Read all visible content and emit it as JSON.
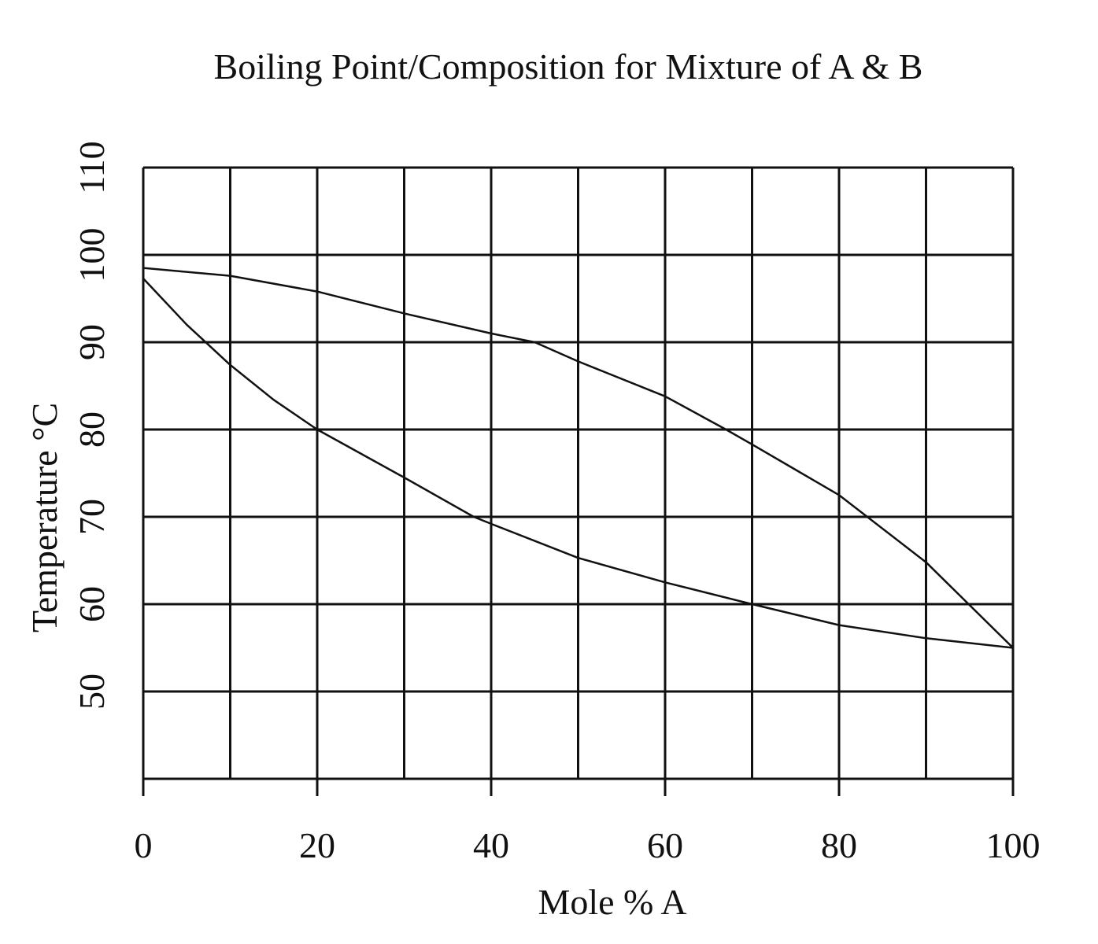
{
  "chart_data": {
    "type": "line",
    "title": "Boiling Point/Composition for Mixture of A & B",
    "xlabel": "Mole % A",
    "ylabel": "Temperature °C",
    "xlim": [
      0,
      100
    ],
    "ylim": [
      40,
      110
    ],
    "x_ticks": [
      "0",
      "20",
      "40",
      "60",
      "80",
      "100"
    ],
    "y_ticks": [
      "50",
      "60",
      "70",
      "80",
      "90",
      "100",
      "110"
    ],
    "grid": true,
    "line_color": "#111111",
    "series": [
      {
        "x": [
          0,
          10,
          20,
          30,
          40,
          45,
          50,
          60,
          67,
          70,
          80,
          90,
          100
        ],
        "y": [
          98.5,
          97.6,
          95.8,
          93.3,
          91.0,
          90.0,
          87.8,
          83.8,
          80.0,
          78.3,
          72.5,
          64.8,
          55.0
        ]
      },
      {
        "x": [
          0,
          5,
          10,
          15,
          20,
          30,
          38,
          40,
          50,
          60,
          70,
          80,
          90,
          100
        ],
        "y": [
          97.3,
          92.0,
          87.4,
          83.4,
          80.0,
          74.5,
          70.0,
          69.2,
          65.3,
          62.5,
          60.0,
          57.6,
          56.1,
          55.0
        ]
      }
    ]
  }
}
